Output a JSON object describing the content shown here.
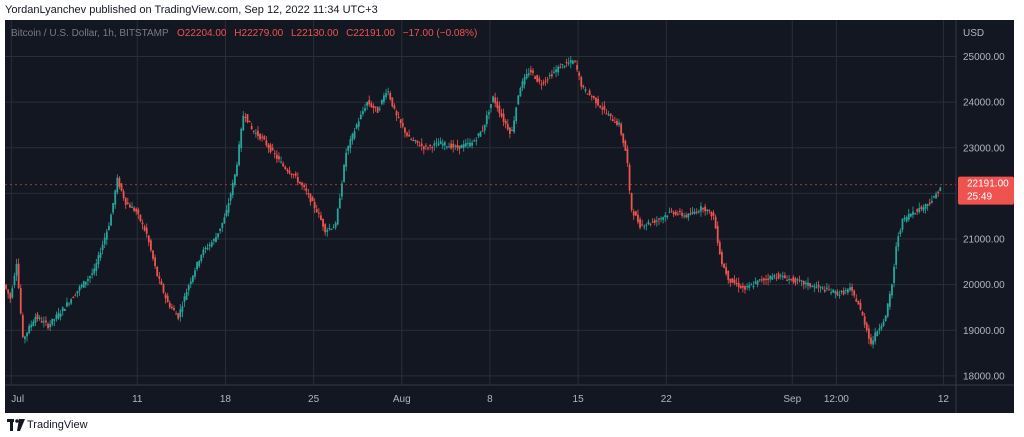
{
  "header": {
    "attribution": "YordanLyanchev published on TradingView.com, Sep 12, 2022 11:34 UTC+3"
  },
  "footer": {
    "brand": "TradingView"
  },
  "colors": {
    "background": "#131722",
    "grid": "#2a2e39",
    "up": "#26a69a",
    "down": "#ef5350",
    "text": "#b2b5be",
    "price_tag": "#ef5350"
  },
  "chart_data": {
    "type": "candlestick",
    "title": "Bitcoin / U.S. Dollar, 1h, BITSTAMP",
    "ohlc": {
      "open": "O22204.00",
      "high": "H22279.00",
      "low": "L22130.00",
      "close": "C22191.00",
      "change": "−17.00 (−0.08%)"
    },
    "currency": "USD",
    "ylim": [
      17800,
      25800
    ],
    "yticks": [
      "25000.00",
      "24000.00",
      "23000.00",
      "22000.00",
      "21000.00",
      "20000.00",
      "19000.00",
      "18000.00"
    ],
    "ytick_values": [
      25000,
      24000,
      23000,
      22000,
      21000,
      20000,
      19000,
      18000
    ],
    "xticks": [
      "Jul",
      "11",
      "18",
      "25",
      "Aug",
      "8",
      "15",
      "22",
      "Sep",
      "12:00",
      "12"
    ],
    "xtick_hours": [
      0,
      240,
      408,
      576,
      744,
      912,
      1080,
      1248,
      1488,
      1572,
      1776
    ],
    "xlim_hours": [
      -12,
      1800
    ],
    "grid": true,
    "last_price": "22191.00",
    "countdown": "25:49",
    "last_value": 22191,
    "path_points": [
      [
        -12,
        20000
      ],
      [
        0,
        19700
      ],
      [
        12,
        20500
      ],
      [
        24,
        18800
      ],
      [
        48,
        19300
      ],
      [
        72,
        19100
      ],
      [
        96,
        19400
      ],
      [
        130,
        19900
      ],
      [
        160,
        20300
      ],
      [
        190,
        21400
      ],
      [
        204,
        22300
      ],
      [
        220,
        21800
      ],
      [
        240,
        21600
      ],
      [
        260,
        21100
      ],
      [
        280,
        20200
      ],
      [
        300,
        19600
      ],
      [
        320,
        19300
      ],
      [
        340,
        20000
      ],
      [
        365,
        20700
      ],
      [
        390,
        21000
      ],
      [
        410,
        21500
      ],
      [
        430,
        22500
      ],
      [
        445,
        23800
      ],
      [
        460,
        23400
      ],
      [
        480,
        23200
      ],
      [
        500,
        22900
      ],
      [
        520,
        22600
      ],
      [
        540,
        22400
      ],
      [
        560,
        22100
      ],
      [
        585,
        21600
      ],
      [
        600,
        21200
      ],
      [
        620,
        21300
      ],
      [
        640,
        22900
      ],
      [
        660,
        23500
      ],
      [
        680,
        24000
      ],
      [
        700,
        23800
      ],
      [
        718,
        24300
      ],
      [
        735,
        23700
      ],
      [
        760,
        23200
      ],
      [
        790,
        23000
      ],
      [
        820,
        23100
      ],
      [
        850,
        23000
      ],
      [
        880,
        23100
      ],
      [
        900,
        23400
      ],
      [
        920,
        24100
      ],
      [
        940,
        23600
      ],
      [
        955,
        23300
      ],
      [
        970,
        24300
      ],
      [
        990,
        24700
      ],
      [
        1010,
        24400
      ],
      [
        1030,
        24600
      ],
      [
        1050,
        24800
      ],
      [
        1075,
        24900
      ],
      [
        1090,
        24300
      ],
      [
        1110,
        24100
      ],
      [
        1140,
        23700
      ],
      [
        1160,
        23500
      ],
      [
        1175,
        22800
      ],
      [
        1182,
        21700
      ],
      [
        1200,
        21300
      ],
      [
        1230,
        21400
      ],
      [
        1260,
        21600
      ],
      [
        1290,
        21500
      ],
      [
        1320,
        21700
      ],
      [
        1340,
        21500
      ],
      [
        1355,
        20500
      ],
      [
        1370,
        20100
      ],
      [
        1400,
        19900
      ],
      [
        1430,
        20100
      ],
      [
        1460,
        20200
      ],
      [
        1490,
        20100
      ],
      [
        1520,
        20000
      ],
      [
        1550,
        19900
      ],
      [
        1580,
        19800
      ],
      [
        1600,
        19900
      ],
      [
        1615,
        19600
      ],
      [
        1630,
        19100
      ],
      [
        1640,
        18700
      ],
      [
        1652,
        19000
      ],
      [
        1668,
        19300
      ],
      [
        1680,
        20000
      ],
      [
        1690,
        21000
      ],
      [
        1700,
        21400
      ],
      [
        1720,
        21600
      ],
      [
        1740,
        21700
      ],
      [
        1760,
        21900
      ],
      [
        1775,
        22200
      ]
    ]
  }
}
